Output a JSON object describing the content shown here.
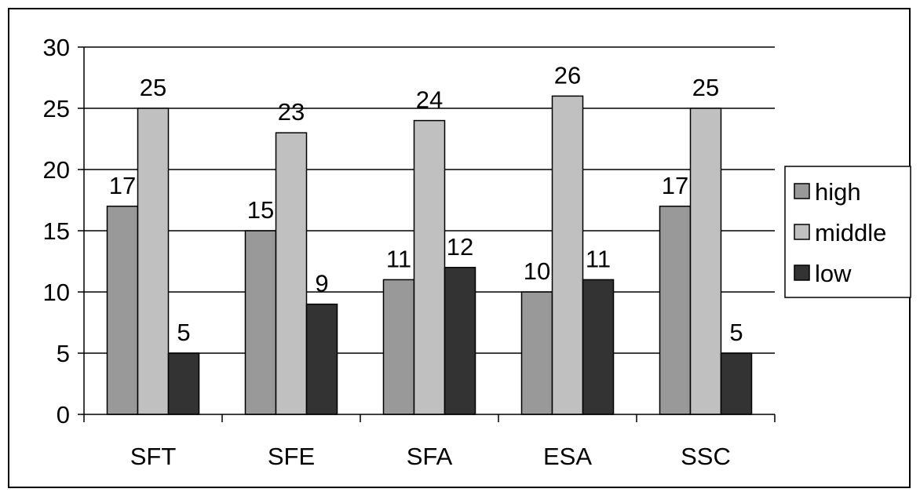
{
  "chart_data": {
    "type": "bar",
    "title": "",
    "xlabel": "",
    "ylabel": "",
    "categories": [
      "SFT",
      "SFE",
      "SFA",
      "ESA",
      "SSC"
    ],
    "series": [
      {
        "name": "high",
        "values": [
          17,
          15,
          11,
          10,
          17
        ],
        "color": "#999999"
      },
      {
        "name": "middle",
        "values": [
          25,
          23,
          24,
          26,
          25
        ],
        "color": "#C0C0C0"
      },
      {
        "name": "low",
        "values": [
          5,
          9,
          12,
          11,
          5
        ],
        "color": "#333333"
      }
    ],
    "ylim": [
      0,
      30
    ],
    "yticks": [
      0,
      5,
      10,
      15,
      20,
      25,
      30
    ],
    "grid": true,
    "legend": "right",
    "data_labels": true
  }
}
